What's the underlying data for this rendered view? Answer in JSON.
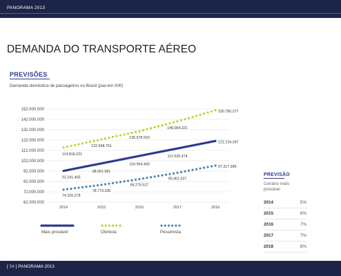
{
  "header": {
    "label": "PANORAMA 2013"
  },
  "page": {
    "title": "DEMANDA DO TRANSPORTE AÉREO",
    "section_title": "PREVISÕES",
    "subtitle": "Demanda doméstica de passageiros no Brasil (pax-km 000)"
  },
  "chart_data": {
    "type": "line",
    "title": "Demanda doméstica de passageiros no Brasil (pax-km 000)",
    "xlabel": "",
    "ylabel": "",
    "x": [
      "2014",
      "2015",
      "2016",
      "2017",
      "2018"
    ],
    "ylim": [
      62000000,
      152000000
    ],
    "yticks": [
      62000000,
      72000000,
      82000000,
      92000000,
      102000000,
      112000000,
      122000000,
      132000000,
      142000000,
      152000000
    ],
    "ytick_labels": [
      "62.000.000",
      "72.000.000",
      "82.000.000",
      "92.000.000",
      "102.000.000",
      "112.000.000",
      "122.000.000",
      "132.000.000",
      "142.000.000",
      "152.000.000"
    ],
    "grid": "horizontal",
    "legend": "bottom",
    "series": [
      {
        "name": "Mais provável",
        "style": "solid",
        "color": "#2e3b8f",
        "values": [
          92241465,
          98051961,
          104904469,
          112525374,
          121134397
        ],
        "labels": [
          "92.241.465",
          "98.051.961",
          "104.904.469",
          "112.525.374",
          "121.134.397"
        ]
      },
      {
        "name": "Otimista",
        "style": "dotted",
        "color": "#b8d62e",
        "values": [
          114818221,
          122648751,
          130578910,
          140064321,
          150780277
        ],
        "labels": [
          "114.818.221",
          "122.648.751",
          "130.578.910",
          "140.064.321",
          "150.780.277"
        ]
      },
      {
        "name": "Pessimista",
        "style": "dotted",
        "color": "#4a84b3",
        "values": [
          74105278,
          78773335,
          84276527,
          90401037,
          97317395
        ],
        "labels": [
          "74.105.278",
          "78.773.335",
          "84.276.527",
          "90.401.037",
          "97.317.395"
        ]
      }
    ]
  },
  "forecast": {
    "title": "PREVISÃO",
    "subtitle": "Cenário mais provável",
    "rows": [
      {
        "year": "2014",
        "pct": "5%"
      },
      {
        "year": "2015",
        "pct": "6%"
      },
      {
        "year": "2016",
        "pct": "7%"
      },
      {
        "year": "2017",
        "pct": "7%"
      },
      {
        "year": "2018",
        "pct": "8%"
      }
    ]
  },
  "footer": {
    "page_number": "54",
    "label": "PANORAMA 2013"
  },
  "colors": {
    "bar": "#1c2447",
    "accent": "#2f3a8c"
  }
}
